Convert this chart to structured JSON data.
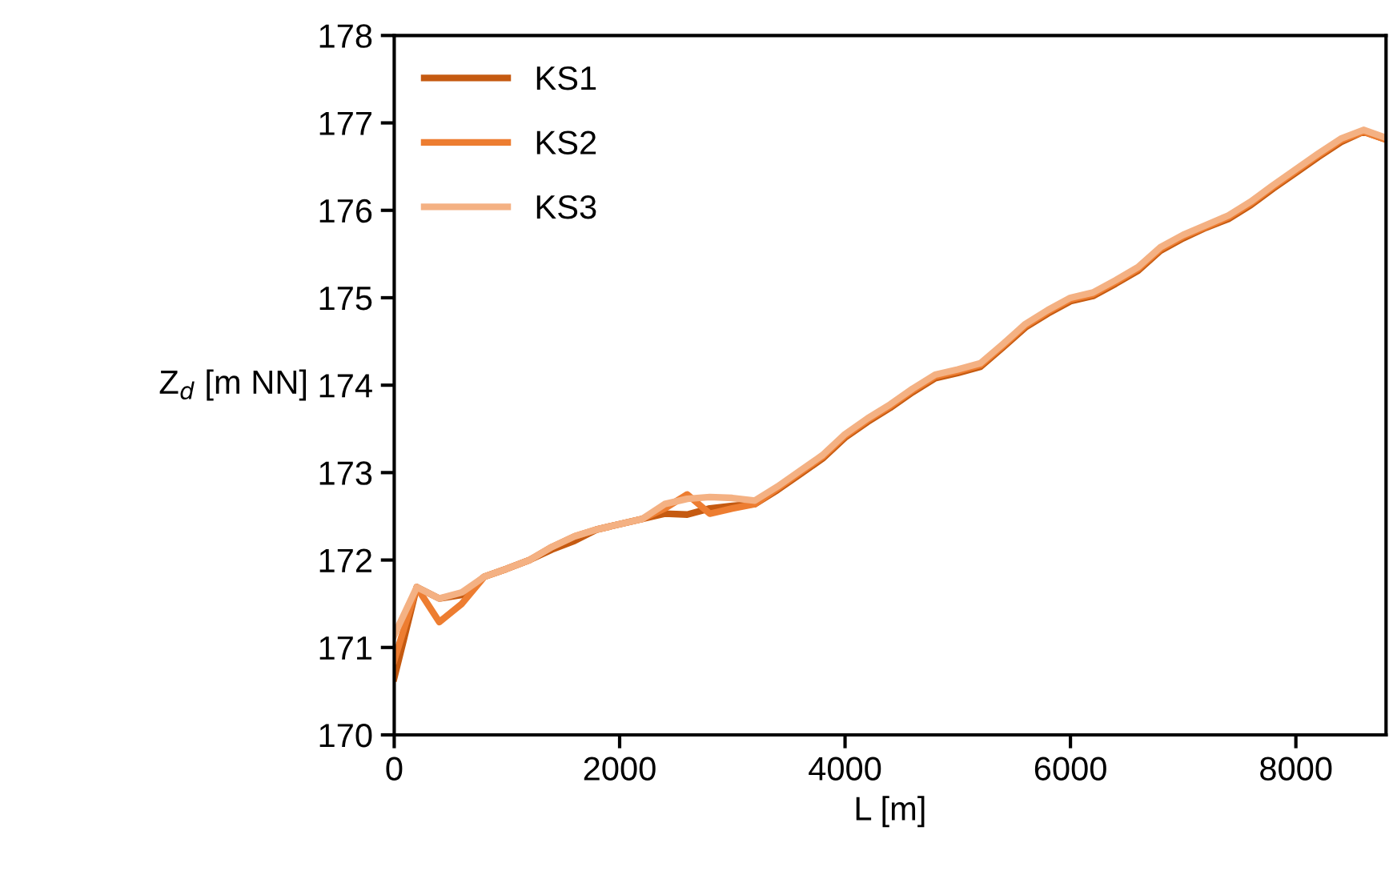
{
  "chart_data": {
    "type": "line",
    "xlabel": "L [m]",
    "ylabel": "Z$_{d}$ [m NN]",
    "x": [
      0,
      200,
      400,
      600,
      800,
      1000,
      1200,
      1400,
      1600,
      1800,
      2000,
      2200,
      2400,
      2600,
      2800,
      3000,
      3200,
      3400,
      3600,
      3800,
      4000,
      4200,
      4400,
      4600,
      4800,
      5000,
      5200,
      5400,
      5600,
      5800,
      6000,
      6200,
      6400,
      6600,
      6800,
      7000,
      7200,
      7400,
      7600,
      7800,
      8000,
      8200,
      8400,
      8600,
      8800
    ],
    "series": [
      {
        "name": "KS1",
        "color": "#c55a11",
        "values": [
          170.65,
          171.69,
          171.56,
          171.6,
          171.81,
          171.9,
          172.0,
          172.12,
          172.22,
          172.35,
          172.41,
          172.47,
          172.53,
          172.52,
          172.59,
          172.62,
          172.64,
          172.8,
          172.98,
          173.16,
          173.4,
          173.58,
          173.74,
          173.92,
          174.08,
          174.14,
          174.21,
          174.43,
          174.66,
          174.82,
          174.96,
          175.02,
          175.16,
          175.31,
          175.54,
          175.68,
          175.8,
          175.9,
          176.06,
          176.25,
          176.43,
          176.61,
          176.78,
          176.9,
          176.81
        ]
      },
      {
        "name": "KS2",
        "color": "#ed7d31",
        "values": [
          170.85,
          171.69,
          171.29,
          171.5,
          171.81,
          171.9,
          172.0,
          172.15,
          172.27,
          172.35,
          172.41,
          172.47,
          172.59,
          172.75,
          172.53,
          172.59,
          172.64,
          172.82,
          173.0,
          173.18,
          173.42,
          173.6,
          173.76,
          173.94,
          174.1,
          174.16,
          174.23,
          174.45,
          174.68,
          174.84,
          174.98,
          175.04,
          175.18,
          175.33,
          175.56,
          175.7,
          175.81,
          175.92,
          176.08,
          176.27,
          176.45,
          176.63,
          176.8,
          176.9,
          176.81
        ]
      },
      {
        "name": "KS3",
        "color": "#f4b183",
        "values": [
          171.14,
          171.69,
          171.56,
          171.63,
          171.81,
          171.9,
          172.0,
          172.15,
          172.27,
          172.35,
          172.41,
          172.47,
          172.64,
          172.7,
          172.72,
          172.71,
          172.68,
          172.84,
          173.02,
          173.2,
          173.44,
          173.62,
          173.78,
          173.96,
          174.12,
          174.18,
          174.25,
          174.47,
          174.7,
          174.86,
          175.0,
          175.06,
          175.2,
          175.35,
          175.58,
          175.72,
          175.83,
          175.94,
          176.1,
          176.29,
          176.47,
          176.65,
          176.82,
          176.92,
          176.83
        ]
      }
    ],
    "xlim": [
      0,
      8800
    ],
    "xticks": [
      0,
      2000,
      4000,
      6000,
      8000
    ],
    "ylim": [
      170,
      178
    ],
    "yticks": [
      170,
      171,
      172,
      173,
      174,
      175,
      176,
      177,
      178
    ],
    "grid": false,
    "legend": "top left",
    "marker": "none",
    "line_style": "solid"
  }
}
